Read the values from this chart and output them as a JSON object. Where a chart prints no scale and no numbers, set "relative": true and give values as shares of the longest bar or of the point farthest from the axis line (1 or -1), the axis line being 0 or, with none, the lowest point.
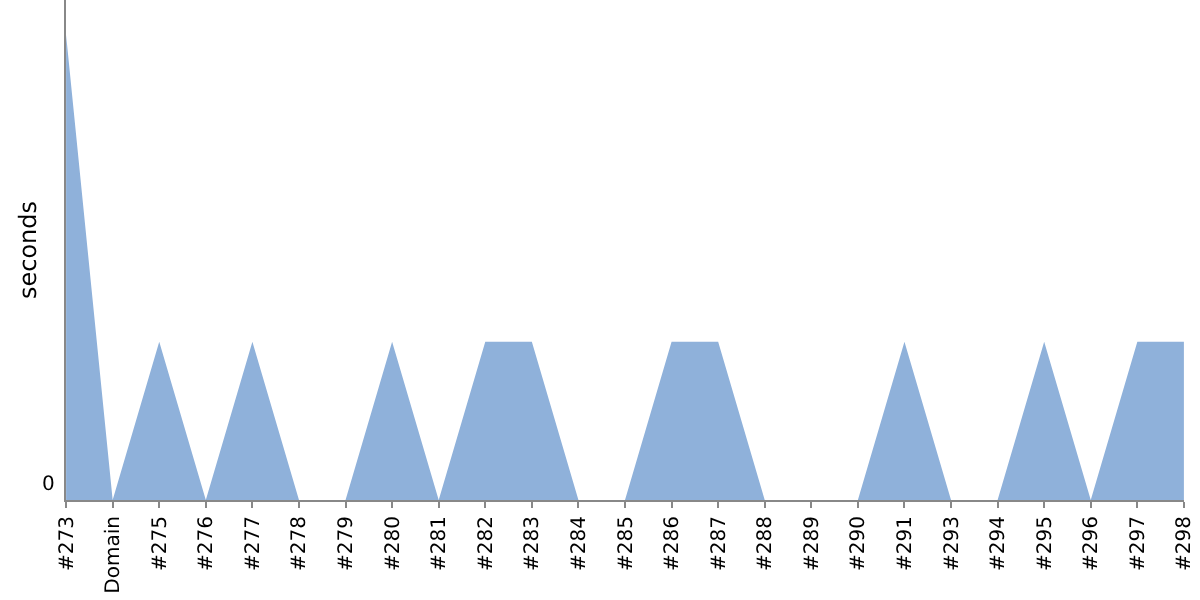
{
  "chart_data": {
    "type": "area",
    "ylabel": "seconds",
    "relative": true,
    "annotations": [
      "0"
    ],
    "categories": [
      "#273",
      "Domain",
      "#275",
      "#276",
      "#277",
      "#278",
      "#279",
      "#280",
      "#281",
      "#282",
      "#283",
      "#284",
      "#285",
      "#286",
      "#287",
      "#288",
      "#289",
      "#290",
      "#291",
      "#293",
      "#294",
      "#295",
      "#296",
      "#297",
      "#298"
    ],
    "series": [
      {
        "color": "#8fb1da",
        "values": [
          1,
          0,
          0.34,
          0,
          0.34,
          0,
          0,
          0.34,
          0,
          0.34,
          0.34,
          0,
          0,
          0.34,
          0.34,
          0,
          0,
          0,
          0.34,
          0,
          0,
          0.34,
          0,
          0.34,
          0.34
        ]
      }
    ]
  }
}
